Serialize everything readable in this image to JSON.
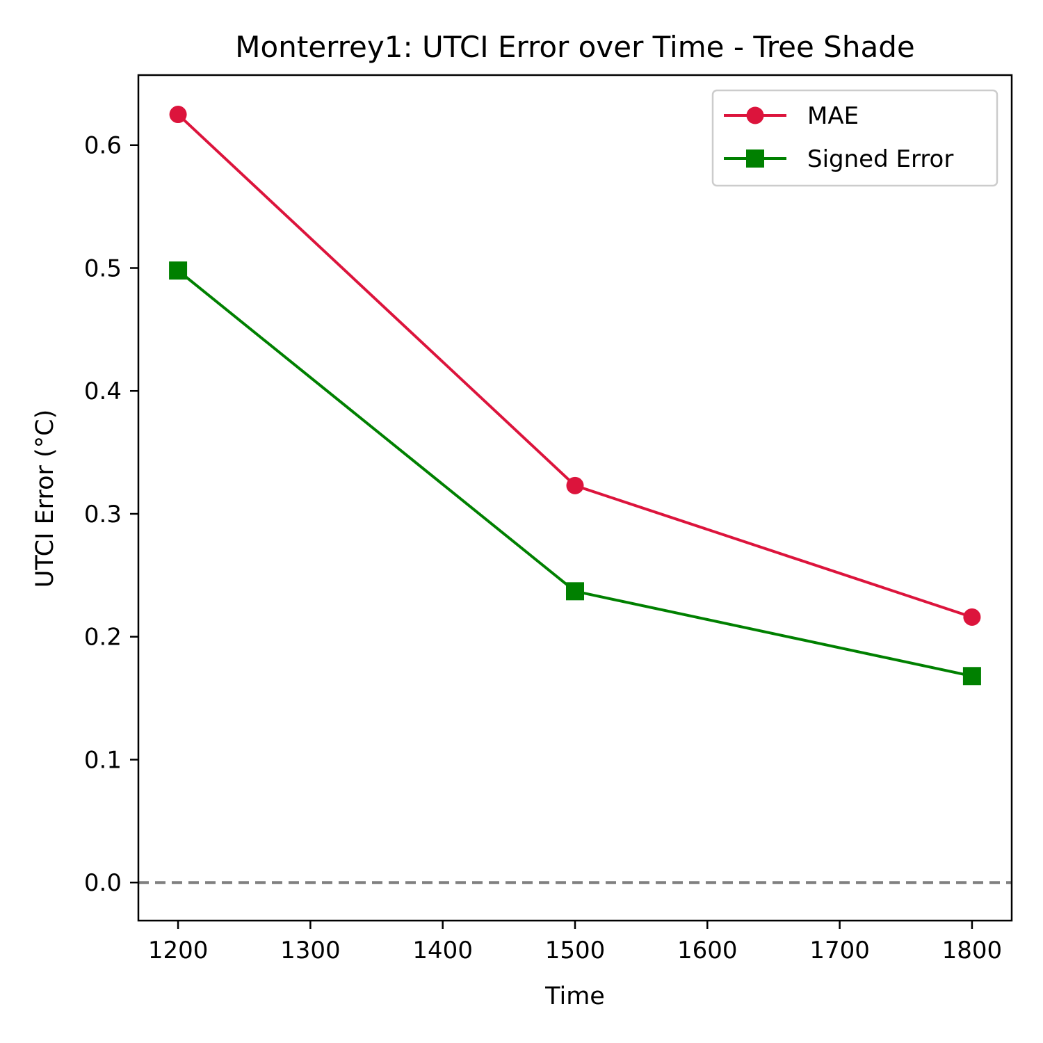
{
  "chart_data": {
    "type": "line",
    "title": "Monterrey1: UTCI Error over Time - Tree Shade",
    "xlabel": "Time",
    "ylabel": "UTCI Error (°C)",
    "xlim": [
      1170,
      1830
    ],
    "ylim": [
      -0.031,
      0.657
    ],
    "x_ticks": [
      1200,
      1300,
      1400,
      1500,
      1600,
      1700,
      1800
    ],
    "x_tick_labels": [
      "1200",
      "1300",
      "1400",
      "1500",
      "1600",
      "1700",
      "1800"
    ],
    "y_ticks": [
      0.0,
      0.1,
      0.2,
      0.3,
      0.4,
      0.5,
      0.6
    ],
    "y_tick_labels": [
      "0.0",
      "0.1",
      "0.2",
      "0.3",
      "0.4",
      "0.5",
      "0.6"
    ],
    "grid": false,
    "legend_position": "top-right",
    "reference_line": {
      "y": 0.0,
      "style": "dashed",
      "color": "#808080"
    },
    "series": [
      {
        "name": "MAE",
        "color": "#dc143c",
        "marker": "circle",
        "x": [
          1200,
          1500,
          1800
        ],
        "y": [
          0.625,
          0.323,
          0.216
        ]
      },
      {
        "name": "Signed Error",
        "color": "#008000",
        "marker": "square",
        "x": [
          1200,
          1500,
          1800
        ],
        "y": [
          0.498,
          0.237,
          0.168
        ]
      }
    ]
  }
}
